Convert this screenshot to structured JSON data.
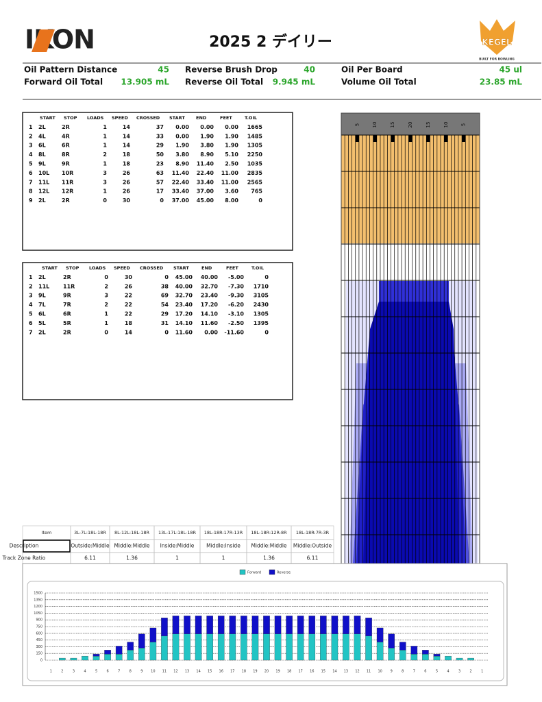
{
  "header": {
    "logo": "IKON",
    "title": "2025 2 デイリー",
    "brand": "KEGEL",
    "tagline": "BUILT FOR BOWLING"
  },
  "summary": [
    {
      "label": "Oil Pattern Distance",
      "value": "45"
    },
    {
      "label": "Reverse Brush Drop",
      "value": "40"
    },
    {
      "label": "Oil Per Board",
      "value": "45 ul"
    },
    {
      "label": "Forward Oil Total",
      "value": "13.905 mL"
    },
    {
      "label": "Reverse Oil Total",
      "value": "9.945 mL"
    },
    {
      "label": "Volume Oil Total",
      "value": "23.85 mL"
    }
  ],
  "forward_table": {
    "columns": [
      "START",
      "STOP",
      "LOADS",
      "SPEED",
      "CROSSED",
      "START",
      "END",
      "FEET",
      "T.OIL"
    ],
    "rows": [
      [
        "1",
        "2L",
        "2R",
        "1",
        "14",
        "37",
        "0.00",
        "0.00",
        "0.00",
        "1665"
      ],
      [
        "2",
        "4L",
        "4R",
        "1",
        "14",
        "33",
        "0.00",
        "1.90",
        "1.90",
        "1485"
      ],
      [
        "3",
        "6L",
        "6R",
        "1",
        "14",
        "29",
        "1.90",
        "3.80",
        "1.90",
        "1305"
      ],
      [
        "4",
        "8L",
        "8R",
        "2",
        "18",
        "50",
        "3.80",
        "8.90",
        "5.10",
        "2250"
      ],
      [
        "5",
        "9L",
        "9R",
        "1",
        "18",
        "23",
        "8.90",
        "11.40",
        "2.50",
        "1035"
      ],
      [
        "6",
        "10L",
        "10R",
        "3",
        "26",
        "63",
        "11.40",
        "22.40",
        "11.00",
        "2835"
      ],
      [
        "7",
        "11L",
        "11R",
        "3",
        "26",
        "57",
        "22.40",
        "33.40",
        "11.00",
        "2565"
      ],
      [
        "8",
        "12L",
        "12R",
        "1",
        "26",
        "17",
        "33.40",
        "37.00",
        "3.60",
        "765"
      ],
      [
        "9",
        "2L",
        "2R",
        "0",
        "30",
        "0",
        "37.00",
        "45.00",
        "8.00",
        "0"
      ]
    ]
  },
  "reverse_table": {
    "columns": [
      "START",
      "STOP",
      "LOADS",
      "SPEED",
      "CROSSED",
      "START",
      "END",
      "FEET",
      "T.OIL"
    ],
    "rows": [
      [
        "1",
        "2L",
        "2R",
        "0",
        "30",
        "0",
        "45.00",
        "40.00",
        "-5.00",
        "0"
      ],
      [
        "2",
        "11L",
        "11R",
        "2",
        "26",
        "38",
        "40.00",
        "32.70",
        "-7.30",
        "1710"
      ],
      [
        "3",
        "9L",
        "9R",
        "3",
        "22",
        "69",
        "32.70",
        "23.40",
        "-9.30",
        "3105"
      ],
      [
        "4",
        "7L",
        "7R",
        "2",
        "22",
        "54",
        "23.40",
        "17.20",
        "-6.20",
        "2430"
      ],
      [
        "5",
        "6L",
        "6R",
        "1",
        "22",
        "29",
        "17.20",
        "14.10",
        "-3.10",
        "1305"
      ],
      [
        "6",
        "5L",
        "5R",
        "1",
        "18",
        "31",
        "14.10",
        "11.60",
        "-2.50",
        "1395"
      ],
      [
        "7",
        "2L",
        "2R",
        "0",
        "14",
        "0",
        "11.60",
        "0.00",
        "-11.60",
        "0"
      ]
    ]
  },
  "lane_labels": [
    "5",
    "10",
    "15",
    "20",
    "15",
    "10",
    "5"
  ],
  "zone_table": {
    "columns": [
      "Item",
      "3L-7L:18L-18R",
      "8L-12L:18L-18R",
      "13L-17L:18L-18R",
      "18L-18R:17R-13R",
      "18L-18R:12R-8R",
      "18L-18R:7R-3R"
    ],
    "rows": [
      [
        "Description",
        "Outside:Middle",
        "Middle:Middle",
        "Inside:Middle",
        "Middle:Inside",
        "Middle:Middle",
        "Middle:Outside"
      ],
      [
        "Track Zone Ratio",
        "6.11",
        "1.36",
        "1",
        "1",
        "1.36",
        "6.11"
      ]
    ]
  },
  "chart_data": {
    "type": "stacked_bar",
    "categories": [
      "1",
      "2",
      "3",
      "4",
      "5",
      "6",
      "7",
      "8",
      "9",
      "10",
      "11",
      "12",
      "13",
      "14",
      "15",
      "16",
      "17",
      "18",
      "19",
      "20",
      "19",
      "18",
      "17",
      "16",
      "15",
      "14",
      "13",
      "12",
      "11",
      "10",
      "9",
      "8",
      "7",
      "6",
      "5",
      "4",
      "3",
      "2",
      "1"
    ],
    "series": [
      {
        "name": "Forward",
        "color": "#22c4c4",
        "values": [
          0,
          45,
          45,
          90,
          90,
          135,
          135,
          225,
          270,
          405,
          540,
          585,
          585,
          585,
          585,
          585,
          585,
          585,
          585,
          585,
          585,
          585,
          585,
          585,
          585,
          585,
          585,
          585,
          540,
          405,
          270,
          225,
          135,
          135,
          90,
          90,
          45,
          45,
          0
        ]
      },
      {
        "name": "Reverse",
        "color": "#1010c8",
        "values": [
          0,
          0,
          0,
          0,
          45,
          90,
          180,
          180,
          315,
          315,
          405,
          405,
          405,
          405,
          405,
          405,
          405,
          405,
          405,
          405,
          405,
          405,
          405,
          405,
          405,
          405,
          405,
          405,
          405,
          315,
          315,
          180,
          180,
          90,
          45,
          0,
          0,
          0,
          0
        ]
      }
    ],
    "ylim": [
      0,
      1500
    ],
    "yticks": [
      0,
      150,
      300,
      450,
      600,
      750,
      900,
      1050,
      1200,
      1350,
      1500
    ],
    "grid": true,
    "legend": "top"
  }
}
